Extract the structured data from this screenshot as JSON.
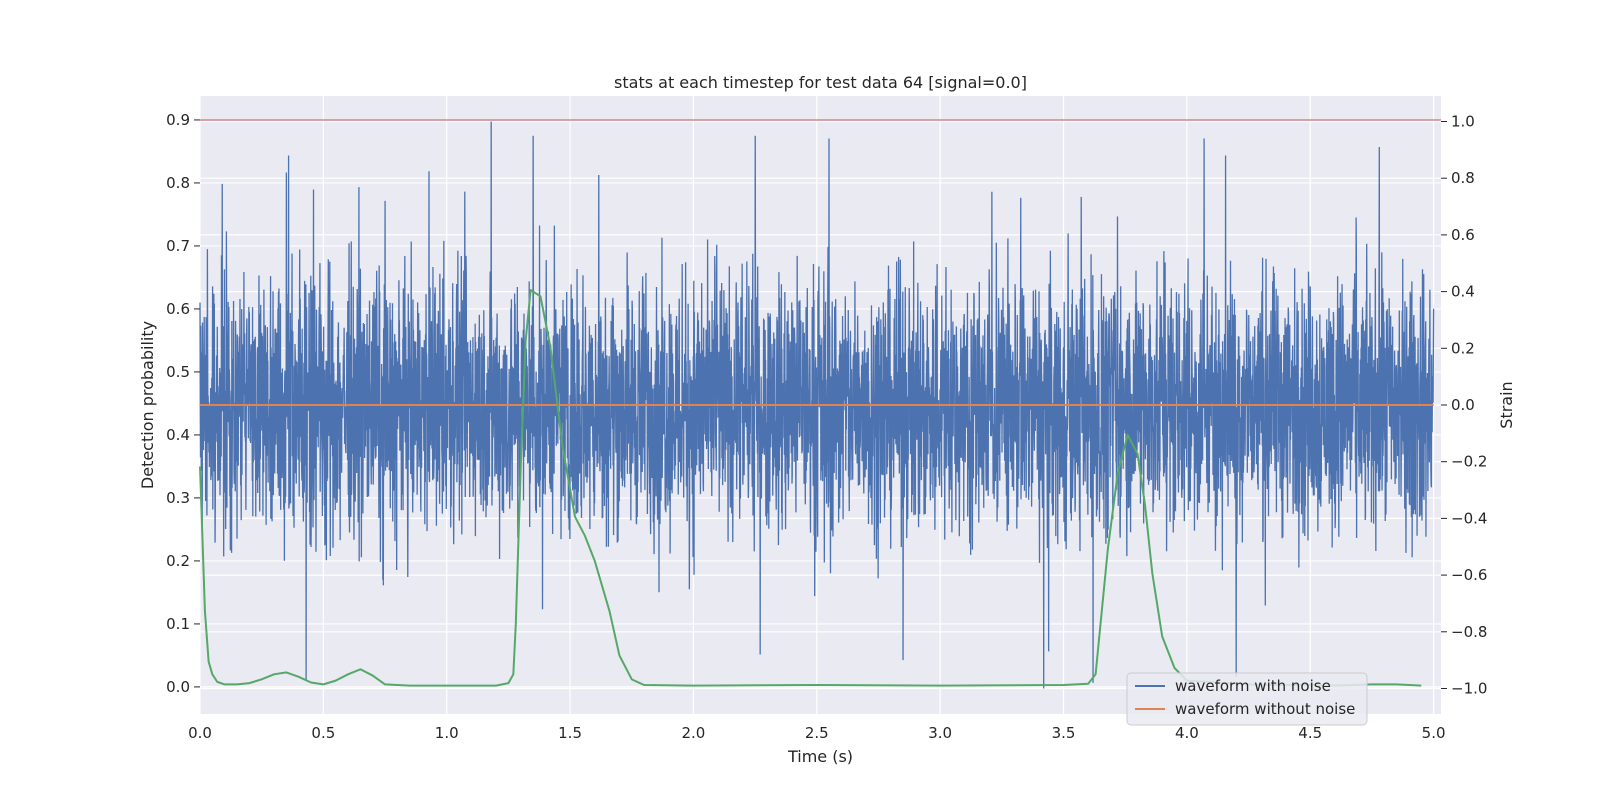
{
  "chart_data": {
    "type": "line",
    "title": "stats at each timestep for test data 64 [signal=0.0]",
    "xlabel": "Time (s)",
    "ylabel": "Detection probability",
    "y2label": "Strain",
    "xlim": [
      0.0,
      5.03
    ],
    "ylim": [
      -0.043,
      0.938
    ],
    "y2lim": [
      -1.09,
      1.09
    ],
    "xticks": [
      "0.0",
      "0.5",
      "1.0",
      "1.5",
      "2.0",
      "2.5",
      "3.0",
      "3.5",
      "4.0",
      "4.5",
      "5.0"
    ],
    "yticks": [
      "0.0",
      "0.1",
      "0.2",
      "0.3",
      "0.4",
      "0.5",
      "0.6",
      "0.7",
      "0.8",
      "0.9"
    ],
    "y2ticks": [
      "−1.0",
      "−0.8",
      "−0.6",
      "−0.4",
      "−0.2",
      "0.0",
      "0.2",
      "0.4",
      "0.6",
      "0.8",
      "1.0"
    ],
    "grid": true,
    "legend_position": "lower-right",
    "threshold": {
      "value": 0.9,
      "color": "#c44e52"
    },
    "series": [
      {
        "name": "waveform with noise",
        "axis": "right",
        "color": "#4c72b0",
        "sample_count": 5000,
        "t_range": [
          0.0,
          5.0
        ],
        "typical_range": [
          -0.35,
          0.35
        ],
        "spikes": [
          {
            "t": 0.03,
            "v": 0.55
          },
          {
            "t": 0.09,
            "v": 0.78
          },
          {
            "t": 0.35,
            "v": 0.82
          },
          {
            "t": 0.43,
            "v": -0.97
          },
          {
            "t": 0.46,
            "v": 0.76
          },
          {
            "t": 0.75,
            "v": 0.72
          },
          {
            "t": 1.18,
            "v": 1.0
          },
          {
            "t": 1.35,
            "v": 0.95
          },
          {
            "t": 2.25,
            "v": 0.95
          },
          {
            "t": 2.55,
            "v": 0.94
          },
          {
            "t": 2.85,
            "v": -0.9
          },
          {
            "t": 3.42,
            "v": -1.0
          },
          {
            "t": 3.62,
            "v": -0.98
          },
          {
            "t": 4.07,
            "v": 0.94
          },
          {
            "t": 4.2,
            "v": -0.96
          },
          {
            "t": 4.78,
            "v": 0.91
          }
        ]
      },
      {
        "name": "waveform without noise",
        "axis": "right",
        "color": "#dd8452",
        "x": [
          0.0,
          5.0
        ],
        "values": [
          0.0,
          0.0
        ]
      },
      {
        "name": "",
        "axis": "left",
        "color": "#55a868",
        "x": [
          0.0,
          0.02,
          0.035,
          0.05,
          0.07,
          0.1,
          0.15,
          0.2,
          0.25,
          0.3,
          0.35,
          0.4,
          0.45,
          0.5,
          0.55,
          0.6,
          0.65,
          0.7,
          0.75,
          0.85,
          1.0,
          1.2,
          1.25,
          1.27,
          1.28,
          1.3,
          1.32,
          1.34,
          1.38,
          1.42,
          1.47,
          1.52,
          1.56,
          1.6,
          1.63,
          1.66,
          1.7,
          1.75,
          1.8,
          2.0,
          2.5,
          3.0,
          3.5,
          3.6,
          3.63,
          3.65,
          3.68,
          3.72,
          3.76,
          3.8,
          3.83,
          3.86,
          3.9,
          3.95,
          4.0,
          4.3,
          4.5,
          4.6,
          4.75,
          4.85,
          4.95
        ],
        "values": [
          0.35,
          0.12,
          0.04,
          0.02,
          0.008,
          0.004,
          0.004,
          0.006,
          0.012,
          0.02,
          0.023,
          0.016,
          0.007,
          0.004,
          0.01,
          0.02,
          0.028,
          0.018,
          0.004,
          0.002,
          0.002,
          0.002,
          0.006,
          0.02,
          0.1,
          0.35,
          0.55,
          0.63,
          0.62,
          0.54,
          0.38,
          0.27,
          0.24,
          0.2,
          0.16,
          0.12,
          0.05,
          0.012,
          0.003,
          0.002,
          0.003,
          0.002,
          0.003,
          0.005,
          0.02,
          0.1,
          0.22,
          0.34,
          0.4,
          0.37,
          0.29,
          0.18,
          0.08,
          0.03,
          0.01,
          0.003,
          0.003,
          0.002,
          0.004,
          0.004,
          0.002
        ]
      }
    ]
  }
}
